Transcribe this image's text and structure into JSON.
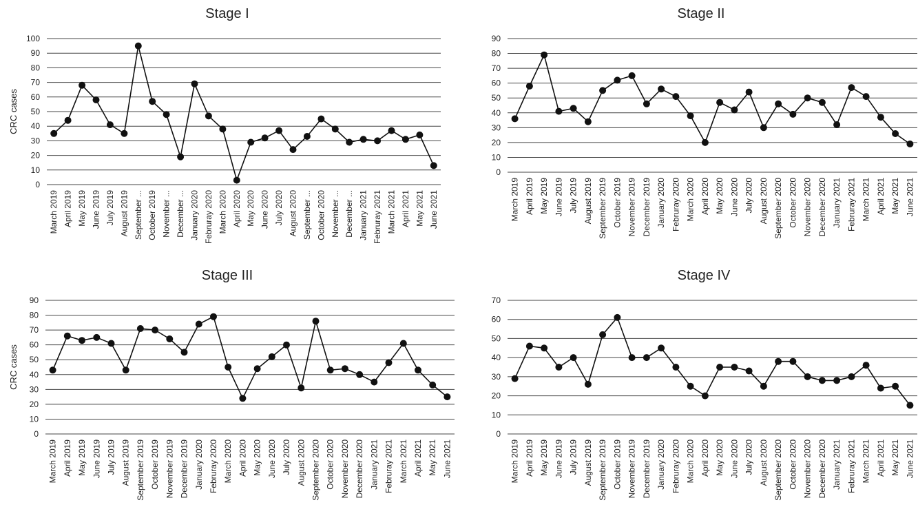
{
  "chart_data": [
    {
      "type": "line",
      "title": "Stage I",
      "ylabel": "CRC cases",
      "ylim": [
        0,
        100
      ],
      "ystep": 10,
      "grid": true,
      "categories": [
        "March 2019",
        "April 2019",
        "May 2019",
        "June 2019",
        "July 2019",
        "August 2019",
        "September ...",
        "October 2019",
        "November ...",
        "December ...",
        "January 2020",
        "Februray 2020",
        "March 2020",
        "April 2020",
        "May 2020",
        "June 2020",
        "July 2020",
        "August 2020",
        "September ...",
        "October 2020",
        "November ...",
        "December ...",
        "January 2021",
        "Februray 2021",
        "March 2021",
        "April 2021",
        "May 2021",
        "June 2021"
      ],
      "series": [
        {
          "values": [
            35,
            44,
            68,
            58,
            41,
            35,
            95,
            57,
            48,
            19,
            69,
            47,
            38,
            3,
            29,
            32,
            37,
            24,
            33,
            45,
            38,
            29,
            31,
            30,
            37,
            31,
            34,
            13
          ]
        }
      ]
    },
    {
      "type": "line",
      "title": "Stage II",
      "ylabel": "",
      "ylim": [
        0,
        90
      ],
      "ystep": 10,
      "grid": true,
      "categories": [
        "March 2019",
        "April 2019",
        "May 2019",
        "June 2019",
        "July 2019",
        "August 2019",
        "September 2019",
        "October 2019",
        "November 2019",
        "December 2019",
        "January 2020",
        "Februray 2020",
        "March 2020",
        "April 2020",
        "May 2020",
        "June 2020",
        "July 2020",
        "August 2020",
        "September 2020",
        "October 2020",
        "November 2020",
        "December 2020",
        "January 2021",
        "Februray 2021",
        "March 2021",
        "April 2021",
        "May 2021",
        "June 2021"
      ],
      "series": [
        {
          "values": [
            36,
            58,
            79,
            41,
            43,
            34,
            55,
            62,
            65,
            46,
            56,
            51,
            38,
            20,
            47,
            42,
            54,
            30,
            46,
            39,
            50,
            47,
            32,
            57,
            51,
            37,
            26,
            19
          ]
        }
      ]
    },
    {
      "type": "line",
      "title": "Stage III",
      "ylabel": "CRC cases",
      "ylim": [
        0,
        90
      ],
      "ystep": 10,
      "grid": true,
      "categories": [
        "March 2019",
        "April 2019",
        "May 2019",
        "June 2019",
        "July 2019",
        "August 2019",
        "September 2019",
        "October 2019",
        "November 2019",
        "December 2019",
        "January 2020",
        "Februray 2020",
        "March 2020",
        "April 2020",
        "May 2020",
        "June 2020",
        "July 2020",
        "August 2020",
        "September 2020",
        "October 2020",
        "November 2020",
        "December 2020",
        "January 2021",
        "Februray 2021",
        "March 2021",
        "April 2021",
        "May 2021",
        "June 2021"
      ],
      "series": [
        {
          "values": [
            43,
            66,
            63,
            65,
            61,
            43,
            71,
            70,
            64,
            55,
            74,
            79,
            45,
            24,
            44,
            52,
            60,
            31,
            76,
            43,
            44,
            40,
            35,
            48,
            61,
            43,
            33,
            25
          ]
        }
      ]
    },
    {
      "type": "line",
      "title": "Stage IV",
      "ylabel": "",
      "ylim": [
        0,
        70
      ],
      "ystep": 10,
      "grid": true,
      "categories": [
        "March 2019",
        "April 2019",
        "May 2019",
        "June 2019",
        "July 2019",
        "August 2019",
        "September 2019",
        "October 2019",
        "November 2019",
        "December 2019",
        "January 2020",
        "Februray 2020",
        "March 2020",
        "April 2020",
        "May 2020",
        "June 2020",
        "July 2020",
        "August 2020",
        "September 2020",
        "October 2020",
        "November 2020",
        "December 2020",
        "January 2021",
        "Februray 2021",
        "March 2021",
        "April 2021",
        "May 2021",
        "June 2021"
      ],
      "series": [
        {
          "values": [
            29,
            46,
            45,
            35,
            40,
            26,
            52,
            61,
            40,
            40,
            45,
            35,
            25,
            20,
            35,
            35,
            33,
            25,
            38,
            38,
            30,
            28,
            28,
            30,
            36,
            24,
            25,
            15
          ]
        }
      ]
    }
  ]
}
